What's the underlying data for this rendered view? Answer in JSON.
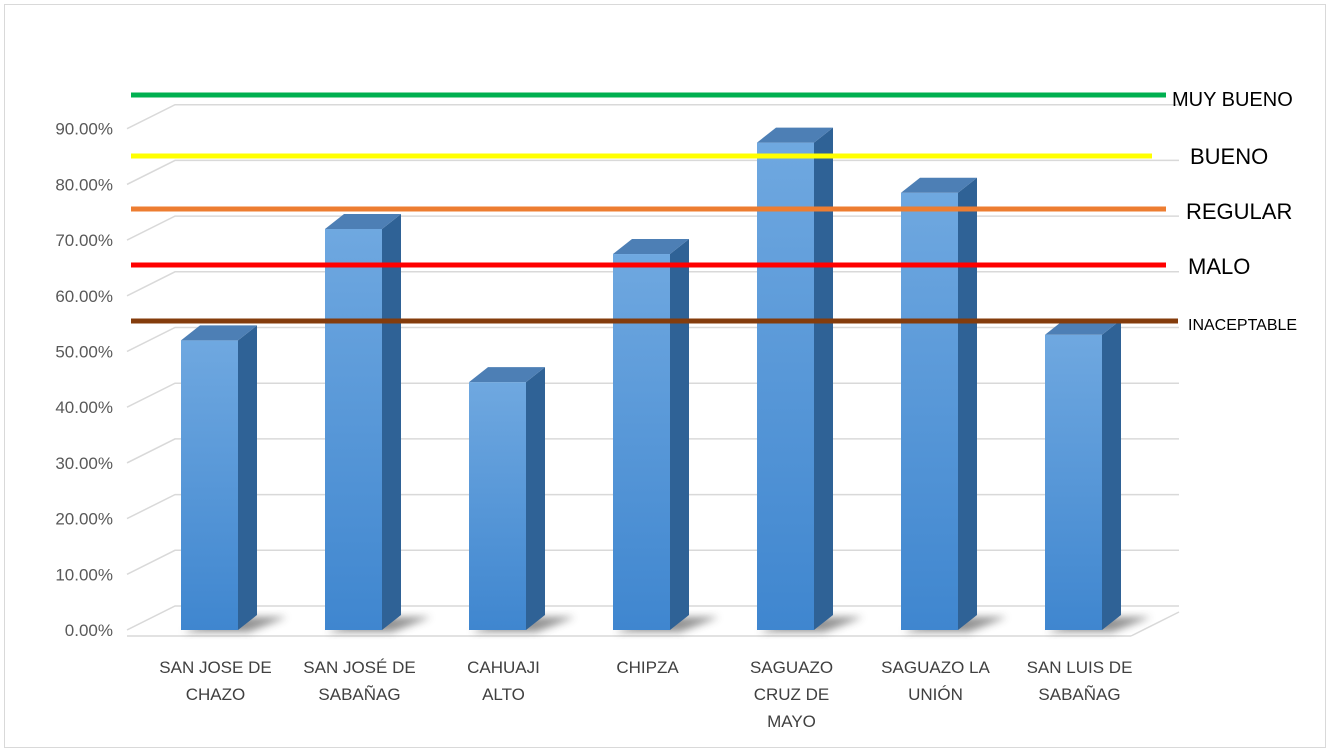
{
  "chart_data": {
    "type": "bar",
    "title": "",
    "xlabel": "",
    "ylabel": "",
    "categories": [
      [
        "SAN JOSE DE",
        "CHAZO"
      ],
      [
        "SAN JOSÉ DE",
        "SABAÑAG"
      ],
      [
        "CAHUAJI",
        "ALTO"
      ],
      [
        "CHIPZA"
      ],
      [
        "SAGUAZO",
        "CRUZ DE",
        "MAYO"
      ],
      [
        "SAGUAZO LA",
        "UNIÓN"
      ],
      [
        "SAN LUIS DE",
        "SABAÑAG"
      ]
    ],
    "values": [
      0.52,
      0.72,
      0.445,
      0.675,
      0.875,
      0.785,
      0.53
    ],
    "ylim": [
      0,
      0.9
    ],
    "yticks": [
      "0.00%",
      "10.00%",
      "20.00%",
      "30.00%",
      "40.00%",
      "50.00%",
      "60.00%",
      "70.00%",
      "80.00%",
      "90.00%"
    ],
    "grid": true,
    "bar_color": "#5b9bd5",
    "reference_lines": [
      {
        "label": "MUY BUENO",
        "value": 0.95,
        "color": "#00b050"
      },
      {
        "label": "BUENO",
        "value": 0.845,
        "color": "#ffff00"
      },
      {
        "label": "REGULAR",
        "value": 0.75,
        "color": "#ed7d31"
      },
      {
        "label": "MALO",
        "value": 0.65,
        "color": "#ff0000"
      },
      {
        "label": "INACEPTABLE",
        "value": 0.55,
        "color": "#843c0c"
      }
    ]
  }
}
